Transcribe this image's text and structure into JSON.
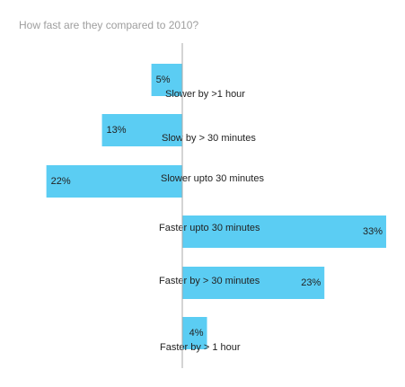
{
  "chart_data": {
    "type": "bar",
    "orientation": "horizontal",
    "title": "How fast are they compared to 2010?",
    "categories": [
      "Slower by >1 hour",
      "Slow by > 30 minutes",
      "Slower upto 30 minutes",
      "Faster upto 30 minutes",
      "Faster by > 30 minutes",
      "Faster by > 1 hour"
    ],
    "values": [
      -5,
      -13,
      -22,
      33,
      23,
      4
    ],
    "value_labels": [
      "5%",
      "13%",
      "22%",
      "33%",
      "23%",
      "4%"
    ],
    "color": "#5bcdf3"
  }
}
